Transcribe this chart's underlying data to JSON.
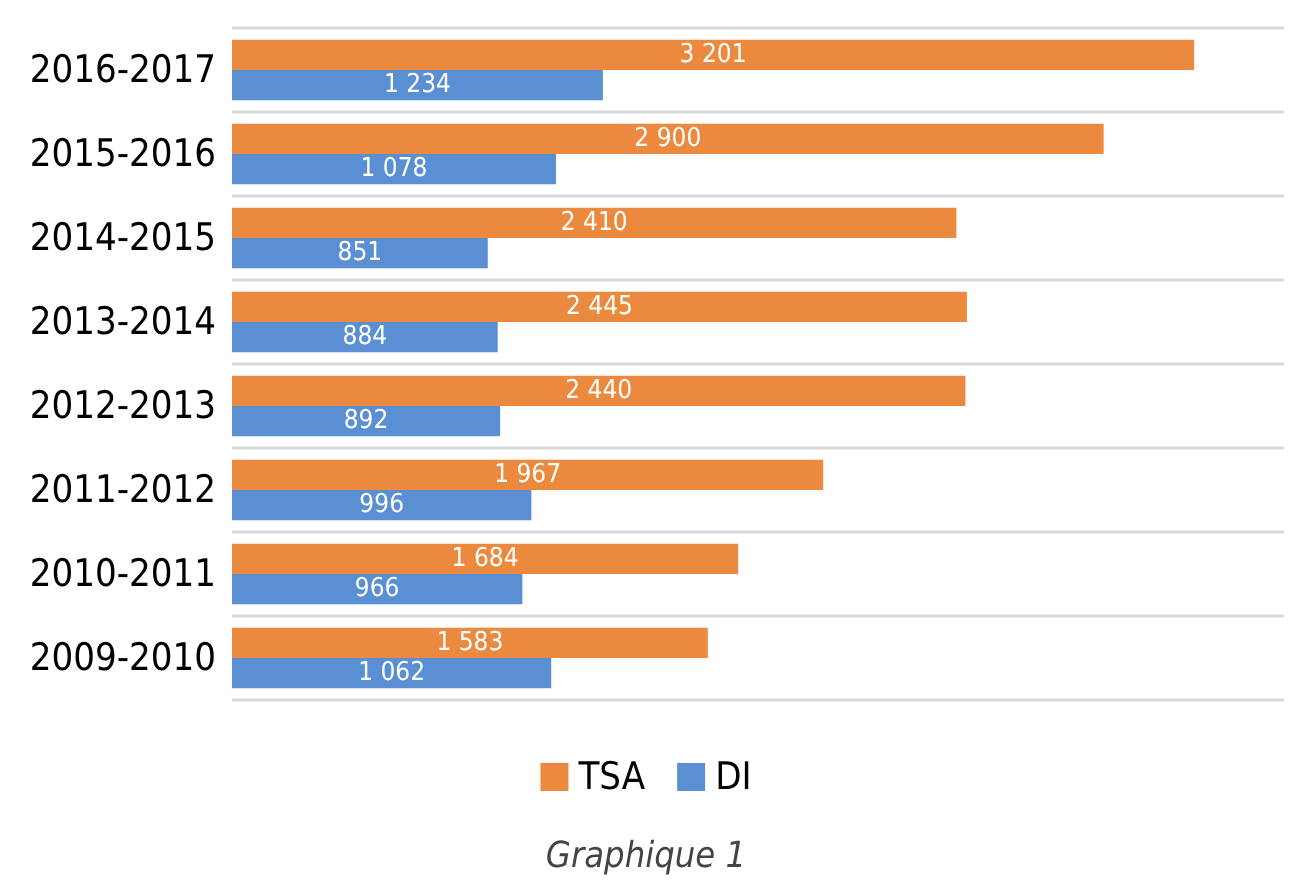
{
  "chart_data": {
    "type": "bar",
    "orientation": "horizontal",
    "categories": [
      "2016-2017",
      "2015-2016",
      "2014-2015",
      "2013-2014",
      "2012-2013",
      "2011-2012",
      "2010-2011",
      "2009-2010"
    ],
    "series": [
      {
        "name": "TSA",
        "color": "#eb8a3f",
        "values": [
          3201,
          2900,
          2410,
          2445,
          2440,
          1967,
          1684,
          1583
        ],
        "value_labels": [
          "3 201",
          "2 900",
          "2 410",
          "2 445",
          "2 440",
          "1 967",
          "1 684",
          "1 583"
        ]
      },
      {
        "name": "DI",
        "color": "#5b8fd3",
        "values": [
          1234,
          1078,
          851,
          884,
          892,
          996,
          966,
          1062
        ],
        "value_labels": [
          "1 234",
          "1 078",
          "851",
          "884",
          "892",
          "996",
          "966",
          "1 062"
        ]
      }
    ],
    "grid": "y",
    "legend": "bottom",
    "annotations": [
      "Graphique 1"
    ]
  }
}
